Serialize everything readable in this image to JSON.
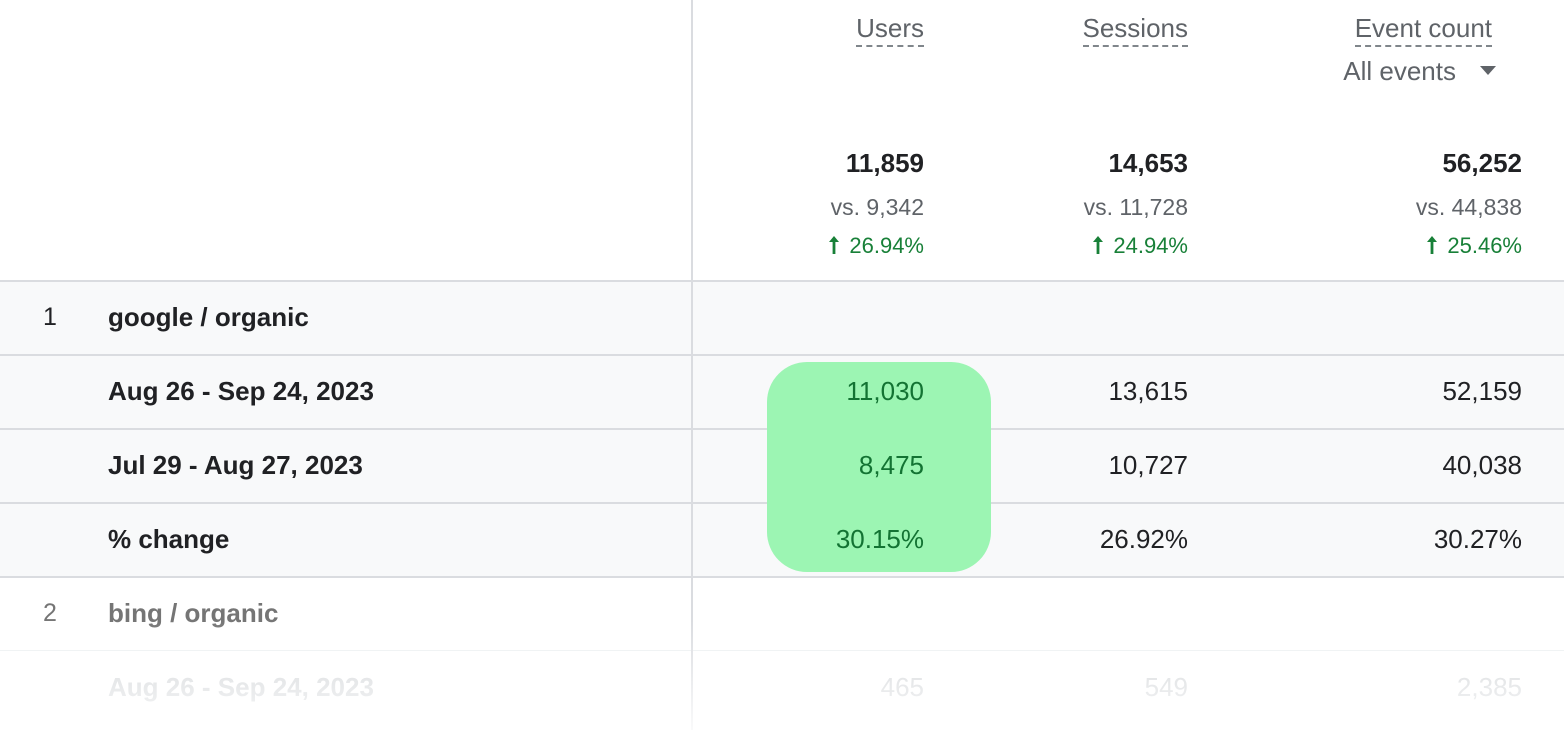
{
  "columns": [
    {
      "label": "Users"
    },
    {
      "label": "Sessions"
    },
    {
      "label": "Event count",
      "sublabel": "All events"
    }
  ],
  "totals": [
    {
      "value": "11,859",
      "compare": "vs. 9,342",
      "change": "26.94%"
    },
    {
      "value": "14,653",
      "compare": "vs. 11,728",
      "change": "24.94%"
    },
    {
      "value": "56,252",
      "compare": "vs. 44,838",
      "change": "25.46%"
    }
  ],
  "rows": [
    {
      "rank": "1",
      "label": "google / organic",
      "subrows": [
        {
          "label": "Aug 26 - Sep 24, 2023",
          "values": [
            "11,030",
            "13,615",
            "52,159"
          ]
        },
        {
          "label": "Jul 29 - Aug 27, 2023",
          "values": [
            "8,475",
            "10,727",
            "40,038"
          ]
        },
        {
          "label": "% change",
          "values": [
            "30.15%",
            "26.92%",
            "30.27%"
          ]
        }
      ]
    },
    {
      "rank": "2",
      "label": "bing / organic",
      "subrows": [
        {
          "label": "Aug 26 - Sep 24, 2023",
          "values": [
            "465",
            "549",
            "2,385"
          ]
        }
      ]
    }
  ]
}
